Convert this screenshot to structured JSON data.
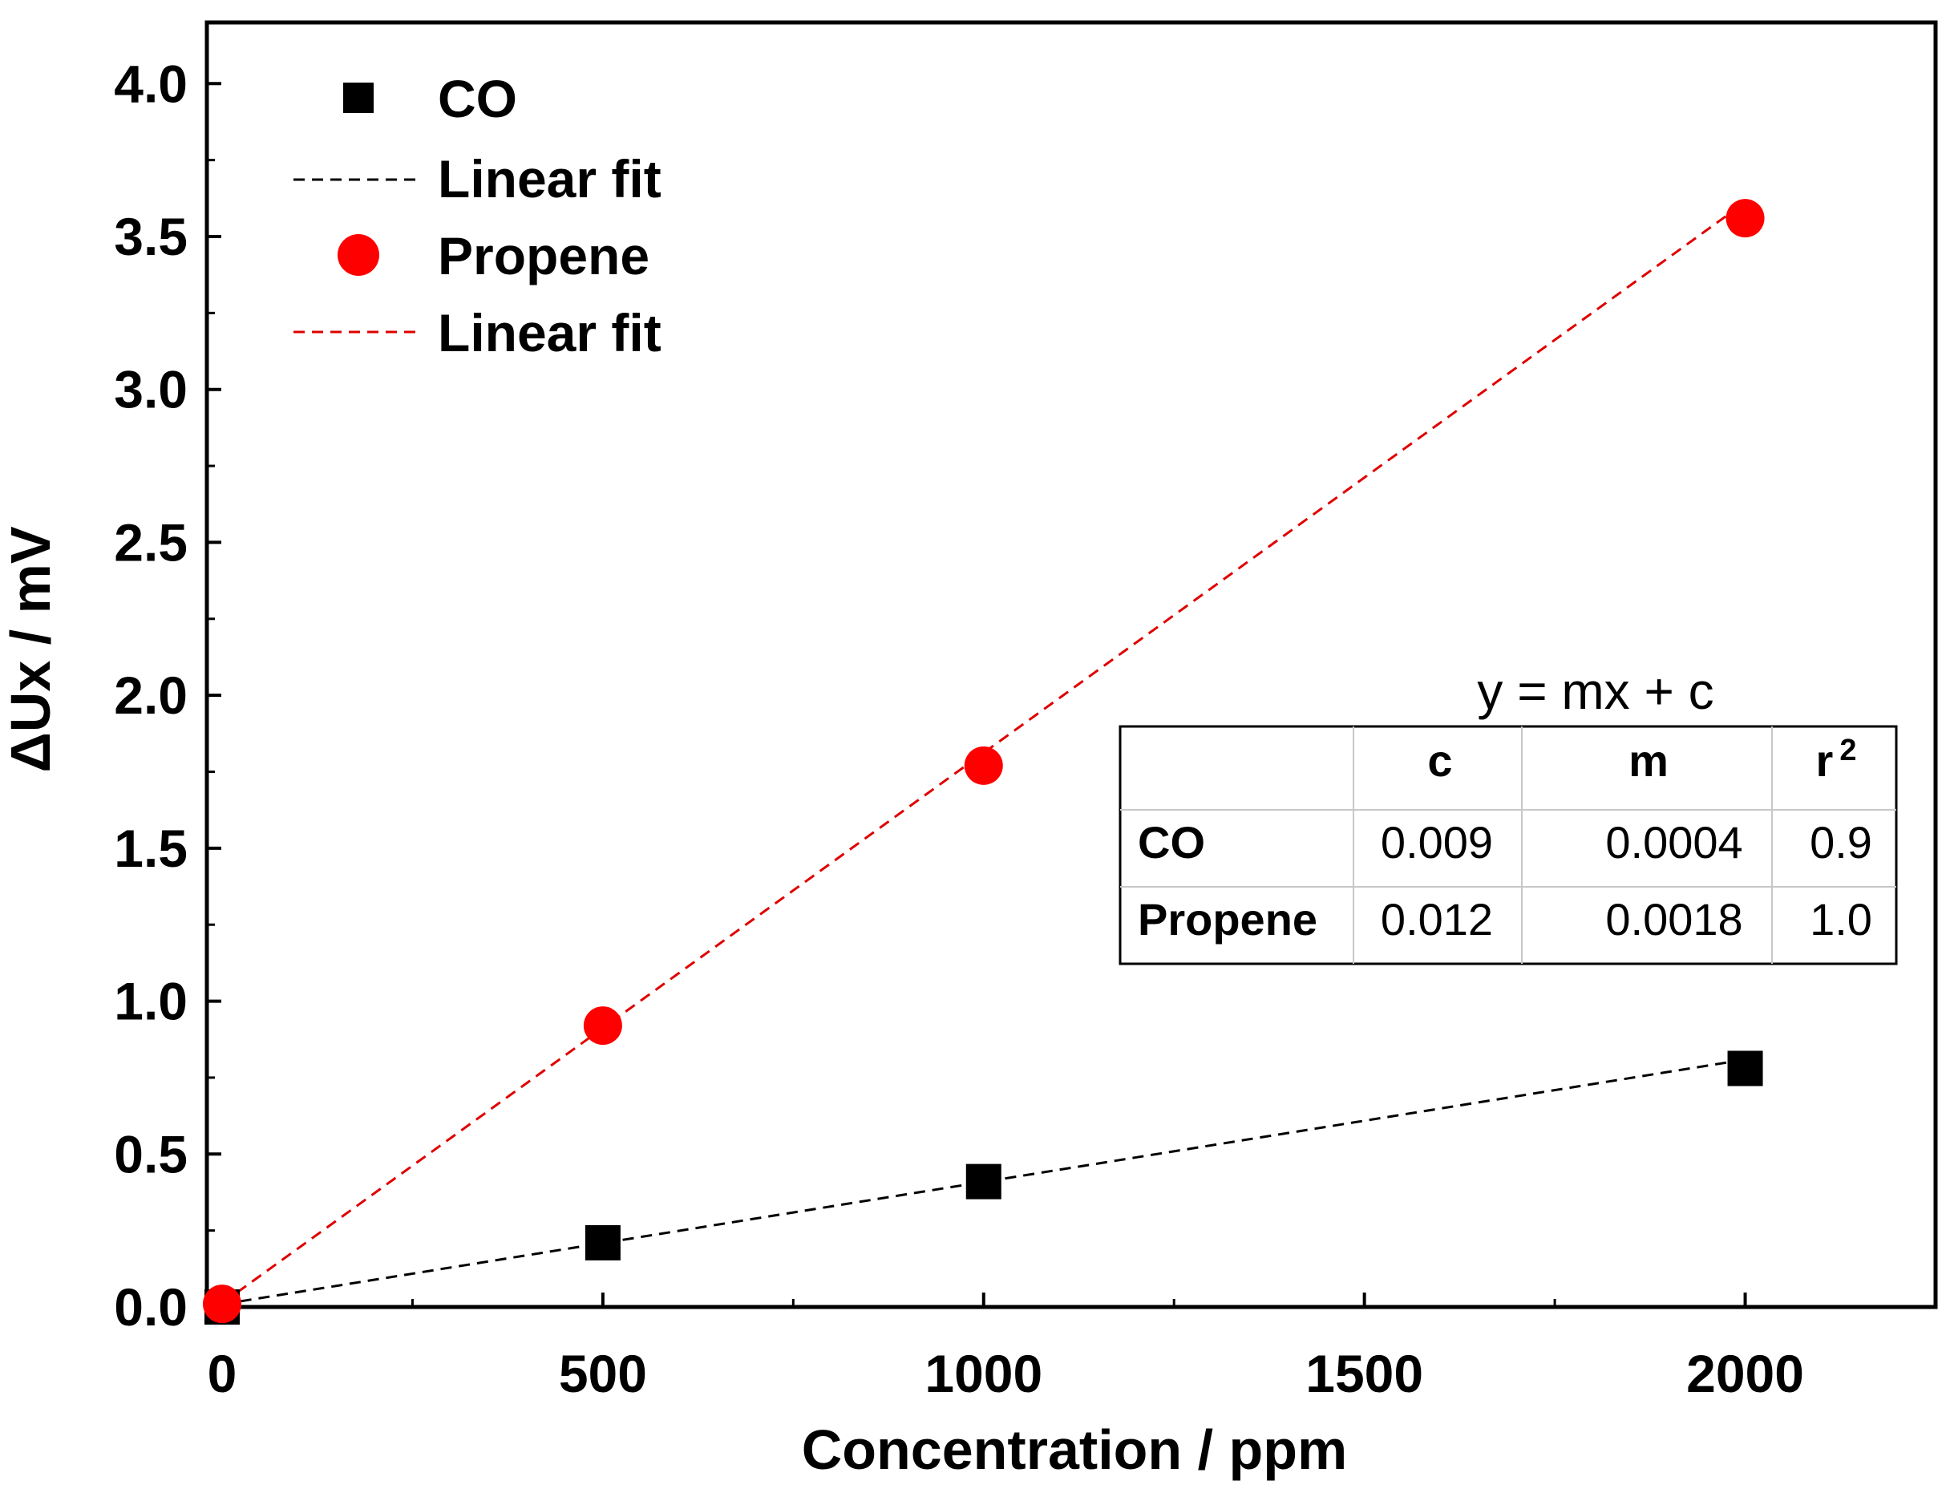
{
  "chart_data": {
    "type": "scatter",
    "xlabel": "Concentration / ppm",
    "ylabel": "ΔUx / mV",
    "xlim": [
      -20,
      2250
    ],
    "ylim": [
      0,
      4.2
    ],
    "x_ticks": [
      0,
      500,
      1000,
      1500,
      2000
    ],
    "x_tick_labels": [
      "0",
      "500",
      "1000",
      "1500",
      "2000"
    ],
    "x_minor_ticks": [
      250,
      750,
      1250,
      1750,
      2250
    ],
    "y_ticks": [
      0,
      0.5,
      1.0,
      1.5,
      2.0,
      2.5,
      3.0,
      3.5,
      4.0
    ],
    "y_tick_labels": [
      "0.0",
      "0.5",
      "1.0",
      "1.5",
      "2.0",
      "2.5",
      "3.0",
      "3.5",
      "4.0"
    ],
    "y_minor_ticks": [
      0.25,
      0.75,
      1.25,
      1.75,
      2.25,
      2.75,
      3.25,
      3.75
    ],
    "series": [
      {
        "name": "CO",
        "marker": "square",
        "color": "#000000",
        "x": [
          0,
          500,
          1000,
          2000
        ],
        "y": [
          0.0,
          0.21,
          0.41,
          0.78
        ],
        "fit": {
          "label": "Linear fit",
          "c": 0.009,
          "m": 0.0004,
          "color": "#000000",
          "x_range": [
            0,
            2000
          ]
        }
      },
      {
        "name": "Propene",
        "marker": "circle",
        "color": "#ff0000",
        "x": [
          0,
          500,
          1000,
          2000
        ],
        "y": [
          0.01,
          0.92,
          1.77,
          3.56
        ],
        "fit": {
          "label": "Linear fit",
          "c": 0.012,
          "m": 0.0018,
          "color": "#e00000",
          "x_range": [
            0,
            2000
          ]
        }
      }
    ],
    "legend": {
      "position": "top-left",
      "entries": [
        {
          "label": "CO",
          "kind": "marker",
          "series": 0
        },
        {
          "label": "Linear fit",
          "kind": "line",
          "series": 0
        },
        {
          "label": "Propene",
          "kind": "marker",
          "series": 1
        },
        {
          "label": "Linear fit",
          "kind": "line",
          "series": 1
        }
      ]
    },
    "annotation": {
      "equation": "y = mx + c",
      "table": {
        "headers": [
          "",
          "c",
          "m",
          "r"
        ],
        "header_superscript": "2",
        "rows": [
          {
            "label": "CO",
            "c": "0.009",
            "m": "0.0004",
            "r2": "0.9"
          },
          {
            "label": "Propene",
            "c": "0.012",
            "m": "0.0018",
            "r2": "1.0"
          }
        ]
      }
    }
  }
}
